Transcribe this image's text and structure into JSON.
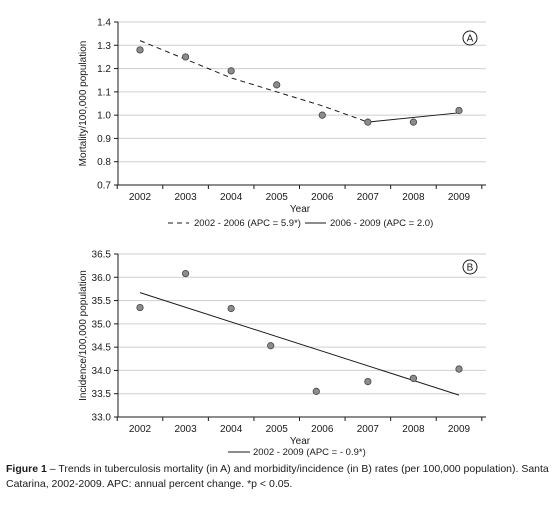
{
  "chart_data": [
    {
      "type": "scatter",
      "panel": "A",
      "ylabel": "Mortality/100,000 population",
      "xlabel": "Year",
      "ylim": [
        0.7,
        1.4
      ],
      "yticks": [
        "0.7",
        "0.8",
        "0.9",
        "1.0",
        "1.1",
        "1.2",
        "1.3",
        "1.4"
      ],
      "categories": [
        "2002",
        "2003",
        "2004",
        "2005",
        "2006",
        "2007",
        "2008",
        "2009"
      ],
      "series": [
        {
          "kind": "points",
          "values": [
            1.28,
            1.25,
            1.19,
            1.13,
            1.0,
            0.97,
            0.97,
            1.02
          ]
        },
        {
          "kind": "trend",
          "style": "dashed",
          "name": "2002 - 2006 (APC = 5.9*)",
          "x": [
            2002,
            2004,
            2006,
            2007
          ],
          "values": [
            1.32,
            1.16,
            1.04,
            0.97
          ]
        },
        {
          "kind": "trend",
          "style": "solid",
          "name": "2006 - 2009 (APC = 2.0)",
          "x": [
            2007,
            2009
          ],
          "values": [
            0.97,
            1.01
          ]
        }
      ],
      "legend": [
        "2002 - 2006 (APC = 5.9*)",
        "2006 - 2009 (APC = 2.0)"
      ]
    },
    {
      "type": "scatter",
      "panel": "B",
      "ylabel": "Incidence/100,000 population",
      "xlabel": "Year",
      "ylim": [
        33.0,
        36.5
      ],
      "yticks": [
        "33.0",
        "33.5",
        "34.0",
        "34.5",
        "35.0",
        "35.5",
        "36.0",
        "36.5"
      ],
      "categories": [
        "2002",
        "2003",
        "2004",
        "2005",
        "2006",
        "2007",
        "2008",
        "2009"
      ],
      "series": [
        {
          "kind": "points",
          "values": [
            35.35,
            36.08,
            35.33,
            34.53,
            33.55,
            33.76,
            33.83,
            34.03
          ]
        },
        {
          "kind": "trend",
          "style": "solid",
          "name": "2002 - 2009 (APC = - 0.9*)",
          "x": [
            2002,
            2009
          ],
          "values": [
            35.67,
            33.47
          ]
        }
      ],
      "legend": [
        "2002 - 2009 (APC = - 0.9*)"
      ]
    }
  ],
  "caption": {
    "label": "Figure 1",
    "text": " – Trends in tuberculosis mortality (in A) and morbidity/incidence (in B) rates (per 100,000 population). Santa Catarina, 2002-2009. APC: annual percent change. *p < 0.05."
  },
  "colors": {
    "point_fill": "#8c8c8c",
    "line": "#1a1a1a",
    "grid": "#cfcfcf"
  }
}
